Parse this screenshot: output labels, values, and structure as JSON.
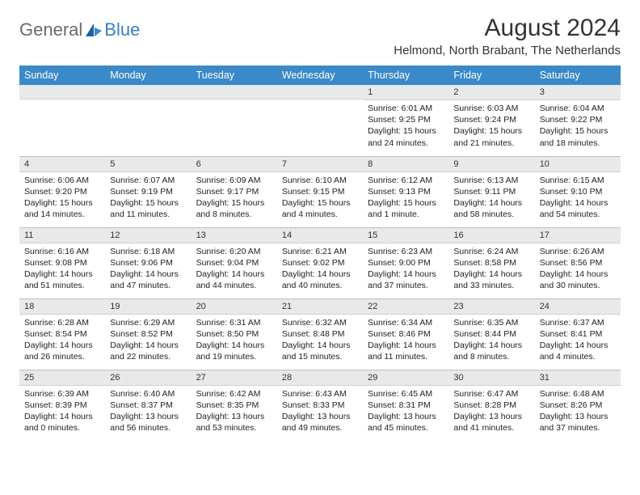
{
  "logo": {
    "part1": "General",
    "part2": "Blue"
  },
  "title": "August 2024",
  "location": "Helmond, North Brabant, The Netherlands",
  "colors": {
    "header_bg": "#3a89c9",
    "header_text": "#ffffff",
    "daynum_bg": "#e7e9eb",
    "border": "#bfbfbf",
    "text": "#222222",
    "title_text": "#333333",
    "logo_gray": "#6a6a6a",
    "logo_blue": "#3a7fc4"
  },
  "weekdays": [
    "Sunday",
    "Monday",
    "Tuesday",
    "Wednesday",
    "Thursday",
    "Friday",
    "Saturday"
  ],
  "weeks": [
    [
      null,
      null,
      null,
      null,
      {
        "n": "1",
        "sr": "6:01 AM",
        "ss": "9:25 PM",
        "dl": "15 hours and 24 minutes."
      },
      {
        "n": "2",
        "sr": "6:03 AM",
        "ss": "9:24 PM",
        "dl": "15 hours and 21 minutes."
      },
      {
        "n": "3",
        "sr": "6:04 AM",
        "ss": "9:22 PM",
        "dl": "15 hours and 18 minutes."
      }
    ],
    [
      {
        "n": "4",
        "sr": "6:06 AM",
        "ss": "9:20 PM",
        "dl": "15 hours and 14 minutes."
      },
      {
        "n": "5",
        "sr": "6:07 AM",
        "ss": "9:19 PM",
        "dl": "15 hours and 11 minutes."
      },
      {
        "n": "6",
        "sr": "6:09 AM",
        "ss": "9:17 PM",
        "dl": "15 hours and 8 minutes."
      },
      {
        "n": "7",
        "sr": "6:10 AM",
        "ss": "9:15 PM",
        "dl": "15 hours and 4 minutes."
      },
      {
        "n": "8",
        "sr": "6:12 AM",
        "ss": "9:13 PM",
        "dl": "15 hours and 1 minute."
      },
      {
        "n": "9",
        "sr": "6:13 AM",
        "ss": "9:11 PM",
        "dl": "14 hours and 58 minutes."
      },
      {
        "n": "10",
        "sr": "6:15 AM",
        "ss": "9:10 PM",
        "dl": "14 hours and 54 minutes."
      }
    ],
    [
      {
        "n": "11",
        "sr": "6:16 AM",
        "ss": "9:08 PM",
        "dl": "14 hours and 51 minutes."
      },
      {
        "n": "12",
        "sr": "6:18 AM",
        "ss": "9:06 PM",
        "dl": "14 hours and 47 minutes."
      },
      {
        "n": "13",
        "sr": "6:20 AM",
        "ss": "9:04 PM",
        "dl": "14 hours and 44 minutes."
      },
      {
        "n": "14",
        "sr": "6:21 AM",
        "ss": "9:02 PM",
        "dl": "14 hours and 40 minutes."
      },
      {
        "n": "15",
        "sr": "6:23 AM",
        "ss": "9:00 PM",
        "dl": "14 hours and 37 minutes."
      },
      {
        "n": "16",
        "sr": "6:24 AM",
        "ss": "8:58 PM",
        "dl": "14 hours and 33 minutes."
      },
      {
        "n": "17",
        "sr": "6:26 AM",
        "ss": "8:56 PM",
        "dl": "14 hours and 30 minutes."
      }
    ],
    [
      {
        "n": "18",
        "sr": "6:28 AM",
        "ss": "8:54 PM",
        "dl": "14 hours and 26 minutes."
      },
      {
        "n": "19",
        "sr": "6:29 AM",
        "ss": "8:52 PM",
        "dl": "14 hours and 22 minutes."
      },
      {
        "n": "20",
        "sr": "6:31 AM",
        "ss": "8:50 PM",
        "dl": "14 hours and 19 minutes."
      },
      {
        "n": "21",
        "sr": "6:32 AM",
        "ss": "8:48 PM",
        "dl": "14 hours and 15 minutes."
      },
      {
        "n": "22",
        "sr": "6:34 AM",
        "ss": "8:46 PM",
        "dl": "14 hours and 11 minutes."
      },
      {
        "n": "23",
        "sr": "6:35 AM",
        "ss": "8:44 PM",
        "dl": "14 hours and 8 minutes."
      },
      {
        "n": "24",
        "sr": "6:37 AM",
        "ss": "8:41 PM",
        "dl": "14 hours and 4 minutes."
      }
    ],
    [
      {
        "n": "25",
        "sr": "6:39 AM",
        "ss": "8:39 PM",
        "dl": "14 hours and 0 minutes."
      },
      {
        "n": "26",
        "sr": "6:40 AM",
        "ss": "8:37 PM",
        "dl": "13 hours and 56 minutes."
      },
      {
        "n": "27",
        "sr": "6:42 AM",
        "ss": "8:35 PM",
        "dl": "13 hours and 53 minutes."
      },
      {
        "n": "28",
        "sr": "6:43 AM",
        "ss": "8:33 PM",
        "dl": "13 hours and 49 minutes."
      },
      {
        "n": "29",
        "sr": "6:45 AM",
        "ss": "8:31 PM",
        "dl": "13 hours and 45 minutes."
      },
      {
        "n": "30",
        "sr": "6:47 AM",
        "ss": "8:28 PM",
        "dl": "13 hours and 41 minutes."
      },
      {
        "n": "31",
        "sr": "6:48 AM",
        "ss": "8:26 PM",
        "dl": "13 hours and 37 minutes."
      }
    ]
  ],
  "labels": {
    "sunrise": "Sunrise:",
    "sunset": "Sunset:",
    "daylight": "Daylight:"
  }
}
